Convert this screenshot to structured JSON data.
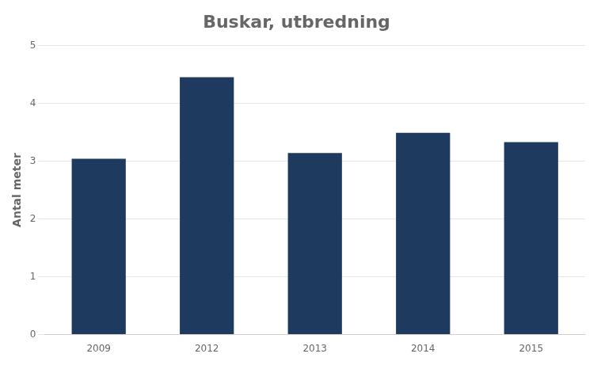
{
  "chart_data": {
    "type": "bar",
    "title": "Buskar, utbredning",
    "ylabel": "Antal meter",
    "categories": [
      "2009",
      "2012",
      "2013",
      "2014",
      "2015"
    ],
    "values": [
      3.04,
      4.45,
      3.14,
      3.49,
      3.33
    ],
    "color": "#1e3a5f",
    "ylim": [
      0,
      5
    ],
    "yticks": [
      0,
      1,
      2,
      3,
      4,
      5
    ],
    "grid": true
  }
}
